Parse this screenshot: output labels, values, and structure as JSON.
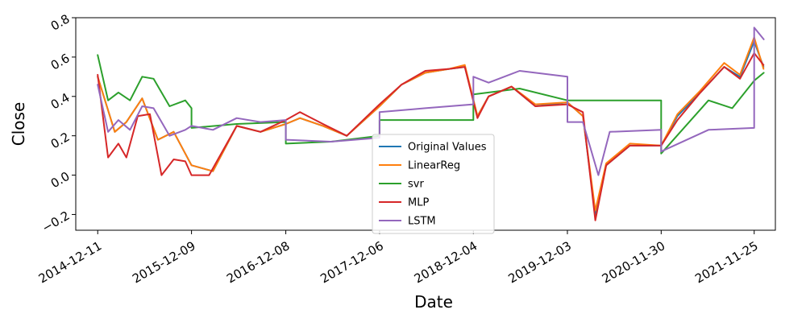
{
  "chart_data": {
    "type": "line",
    "title": "",
    "xlabel": "Date",
    "ylabel": "Close",
    "ylim": [
      -0.28,
      0.8
    ],
    "yticks": [
      "−0.2",
      "0.0",
      "0.2",
      "0.4",
      "0.6",
      "0.8"
    ],
    "ytick_values": [
      -0.2,
      0.0,
      0.2,
      0.4,
      0.6,
      0.8
    ],
    "xticks": [
      "2014-12-11",
      "2015-12-09",
      "2016-12-08",
      "2017-12-06",
      "2018-12-04",
      "2019-12-03",
      "2020-11-30",
      "2021-11-25"
    ],
    "x_range": [
      "2014-09-17",
      "2022-02-15"
    ],
    "grid": false,
    "legend": "lower-center",
    "series": [
      {
        "name": "Original Values",
        "color": "#1f77b4",
        "x": [
          "2014-12-11",
          "2015-02-15",
          "2015-04-01",
          "2015-06-01",
          "2015-08-01",
          "2015-10-01",
          "2015-12-09",
          "2016-03-01",
          "2016-06-01",
          "2016-09-01",
          "2016-12-08",
          "2017-02-01",
          "2017-05-01",
          "2017-08-01",
          "2017-12-06",
          "2018-03-01",
          "2018-06-01",
          "2018-09-01",
          "2018-11-01",
          "2018-12-20",
          "2019-02-01",
          "2019-05-01",
          "2019-08-01",
          "2019-12-03",
          "2020-02-01",
          "2020-03-20",
          "2020-05-01",
          "2020-08-01",
          "2020-11-30",
          "2021-02-01",
          "2021-05-01",
          "2021-08-01",
          "2021-10-01",
          "2021-11-25",
          "2021-12-31"
        ],
        "values": [
          0.5,
          0.22,
          0.27,
          0.39,
          0.18,
          0.22,
          0.05,
          0.02,
          0.25,
          0.22,
          0.26,
          0.29,
          0.25,
          0.2,
          0.35,
          0.46,
          0.52,
          0.54,
          0.55,
          0.3,
          0.4,
          0.45,
          0.35,
          0.37,
          0.3,
          -0.2,
          0.05,
          0.15,
          0.15,
          0.3,
          0.42,
          0.55,
          0.5,
          0.68,
          0.55
        ]
      },
      {
        "name": "LinearReg",
        "color": "#ff7f0e",
        "x": [
          "2014-12-11",
          "2015-02-15",
          "2015-04-01",
          "2015-06-01",
          "2015-08-01",
          "2015-10-01",
          "2015-12-09",
          "2016-03-01",
          "2016-06-01",
          "2016-09-01",
          "2016-12-08",
          "2017-02-01",
          "2017-05-01",
          "2017-08-01",
          "2017-12-06",
          "2018-03-01",
          "2018-06-01",
          "2018-09-01",
          "2018-11-01",
          "2018-12-20",
          "2019-02-01",
          "2019-05-01",
          "2019-08-01",
          "2019-12-03",
          "2020-02-01",
          "2020-03-20",
          "2020-05-01",
          "2020-08-01",
          "2020-11-30",
          "2021-02-01",
          "2021-05-01",
          "2021-08-01",
          "2021-10-01",
          "2021-11-25",
          "2021-12-31"
        ],
        "values": [
          0.5,
          0.22,
          0.27,
          0.39,
          0.18,
          0.22,
          0.05,
          0.02,
          0.25,
          0.22,
          0.26,
          0.29,
          0.25,
          0.2,
          0.35,
          0.46,
          0.52,
          0.54,
          0.56,
          0.3,
          0.4,
          0.45,
          0.36,
          0.37,
          0.3,
          -0.18,
          0.06,
          0.16,
          0.15,
          0.31,
          0.43,
          0.57,
          0.51,
          0.7,
          0.54
        ]
      },
      {
        "name": "svr",
        "color": "#2ca02c",
        "x": [
          "2014-12-11",
          "2015-01-20",
          "2015-03-01",
          "2015-04-15",
          "2015-06-01",
          "2015-07-15",
          "2015-09-15",
          "2015-11-15",
          "2015-12-09",
          "2015-12-09",
          "2016-06-01",
          "2016-12-08",
          "2016-12-08",
          "2017-06-01",
          "2017-12-06",
          "2017-12-06",
          "2018-12-04",
          "2018-12-04",
          "2019-06-01",
          "2019-12-03",
          "2019-12-03",
          "2020-11-30",
          "2020-11-30",
          "2021-06-01",
          "2021-09-01",
          "2021-11-25",
          "2022-01-01"
        ],
        "values": [
          0.61,
          0.38,
          0.42,
          0.38,
          0.5,
          0.49,
          0.35,
          0.38,
          0.34,
          0.24,
          0.26,
          0.27,
          0.16,
          0.17,
          0.2,
          0.28,
          0.28,
          0.41,
          0.44,
          0.38,
          0.38,
          0.38,
          0.11,
          0.38,
          0.34,
          0.48,
          0.52
        ]
      },
      {
        "name": "MLP",
        "color": "#d62728",
        "x": [
          "2014-12-11",
          "2015-01-20",
          "2015-03-01",
          "2015-04-01",
          "2015-05-15",
          "2015-07-01",
          "2015-08-15",
          "2015-10-01",
          "2015-11-15",
          "2015-12-09",
          "2016-02-15",
          "2016-06-01",
          "2016-09-01",
          "2016-12-08",
          "2017-02-01",
          "2017-05-01",
          "2017-08-01",
          "2017-12-06",
          "2018-03-01",
          "2018-06-01",
          "2018-09-01",
          "2018-11-01",
          "2018-12-20",
          "2019-02-01",
          "2019-05-01",
          "2019-08-01",
          "2019-12-03",
          "2020-02-01",
          "2020-03-20",
          "2020-05-01",
          "2020-08-01",
          "2020-11-30",
          "2021-02-01",
          "2021-05-01",
          "2021-08-01",
          "2021-10-01",
          "2021-11-25",
          "2021-12-31"
        ],
        "values": [
          0.51,
          0.09,
          0.16,
          0.09,
          0.3,
          0.31,
          0.0,
          0.08,
          0.07,
          0.0,
          0.0,
          0.25,
          0.22,
          0.28,
          0.32,
          0.26,
          0.2,
          0.36,
          0.46,
          0.53,
          0.54,
          0.55,
          0.29,
          0.4,
          0.45,
          0.35,
          0.36,
          0.32,
          -0.23,
          0.05,
          0.15,
          0.15,
          0.28,
          0.42,
          0.55,
          0.49,
          0.62,
          0.56
        ]
      },
      {
        "name": "LSTM",
        "color": "#9467bd",
        "x": [
          "2014-12-11",
          "2015-01-20",
          "2015-03-01",
          "2015-04-15",
          "2015-06-01",
          "2015-07-15",
          "2015-09-15",
          "2015-11-15",
          "2015-12-09",
          "2016-03-01",
          "2016-06-01",
          "2016-09-01",
          "2016-12-08",
          "2016-12-08",
          "2017-06-01",
          "2017-12-06",
          "2017-12-06",
          "2018-06-01",
          "2018-12-04",
          "2018-12-04",
          "2019-02-01",
          "2019-06-01",
          "2019-12-03",
          "2019-12-03",
          "2020-02-01",
          "2020-04-01",
          "2020-05-15",
          "2020-11-30",
          "2020-11-30",
          "2021-06-01",
          "2021-11-25",
          "2021-11-25",
          "2022-01-01"
        ],
        "values": [
          0.46,
          0.22,
          0.28,
          0.23,
          0.35,
          0.34,
          0.2,
          0.23,
          0.25,
          0.23,
          0.29,
          0.27,
          0.28,
          0.18,
          0.17,
          0.19,
          0.32,
          0.34,
          0.36,
          0.5,
          0.47,
          0.53,
          0.5,
          0.27,
          0.27,
          0.0,
          0.22,
          0.23,
          0.12,
          0.23,
          0.24,
          0.75,
          0.69
        ]
      }
    ]
  }
}
